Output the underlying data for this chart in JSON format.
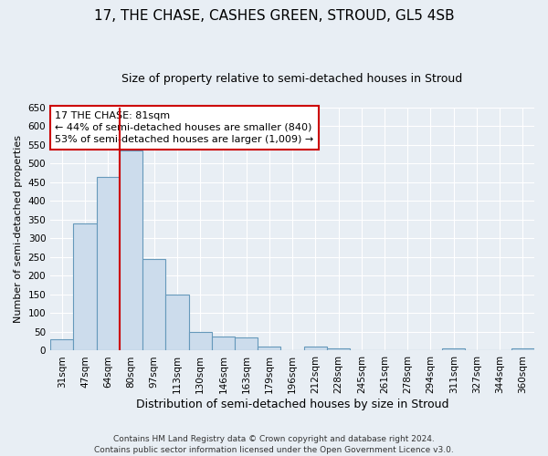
{
  "title": "17, THE CHASE, CASHES GREEN, STROUD, GL5 4SB",
  "subtitle": "Size of property relative to semi-detached houses in Stroud",
  "xlabel": "Distribution of semi-detached houses by size in Stroud",
  "ylabel": "Number of semi-detached properties",
  "categories": [
    "31sqm",
    "47sqm",
    "64sqm",
    "80sqm",
    "97sqm",
    "113sqm",
    "130sqm",
    "146sqm",
    "163sqm",
    "179sqm",
    "196sqm",
    "212sqm",
    "228sqm",
    "245sqm",
    "261sqm",
    "278sqm",
    "294sqm",
    "311sqm",
    "327sqm",
    "344sqm",
    "360sqm"
  ],
  "values": [
    30,
    340,
    465,
    535,
    245,
    150,
    50,
    38,
    36,
    12,
    0,
    12,
    5,
    0,
    0,
    0,
    0,
    5,
    0,
    0,
    5
  ],
  "bar_color": "#ccdcec",
  "bar_edge_color": "#6699bb",
  "vline_index": 3,
  "vline_color": "#cc0000",
  "annotation_title": "17 THE CHASE: 81sqm",
  "annotation_line1": "← 44% of semi-detached houses are smaller (840)",
  "annotation_line2": "53% of semi-detached houses are larger (1,009) →",
  "annotation_box_color": "#cc0000",
  "ylim": [
    0,
    650
  ],
  "yticks": [
    0,
    50,
    100,
    150,
    200,
    250,
    300,
    350,
    400,
    450,
    500,
    550,
    600,
    650
  ],
  "background_color": "#e8eef4",
  "grid_color": "#ffffff",
  "footer_line1": "Contains HM Land Registry data © Crown copyright and database right 2024.",
  "footer_line2": "Contains public sector information licensed under the Open Government Licence v3.0.",
  "title_fontsize": 11,
  "subtitle_fontsize": 9,
  "xlabel_fontsize": 9,
  "ylabel_fontsize": 8,
  "tick_fontsize": 7.5,
  "annotation_fontsize": 8,
  "footer_fontsize": 6.5
}
